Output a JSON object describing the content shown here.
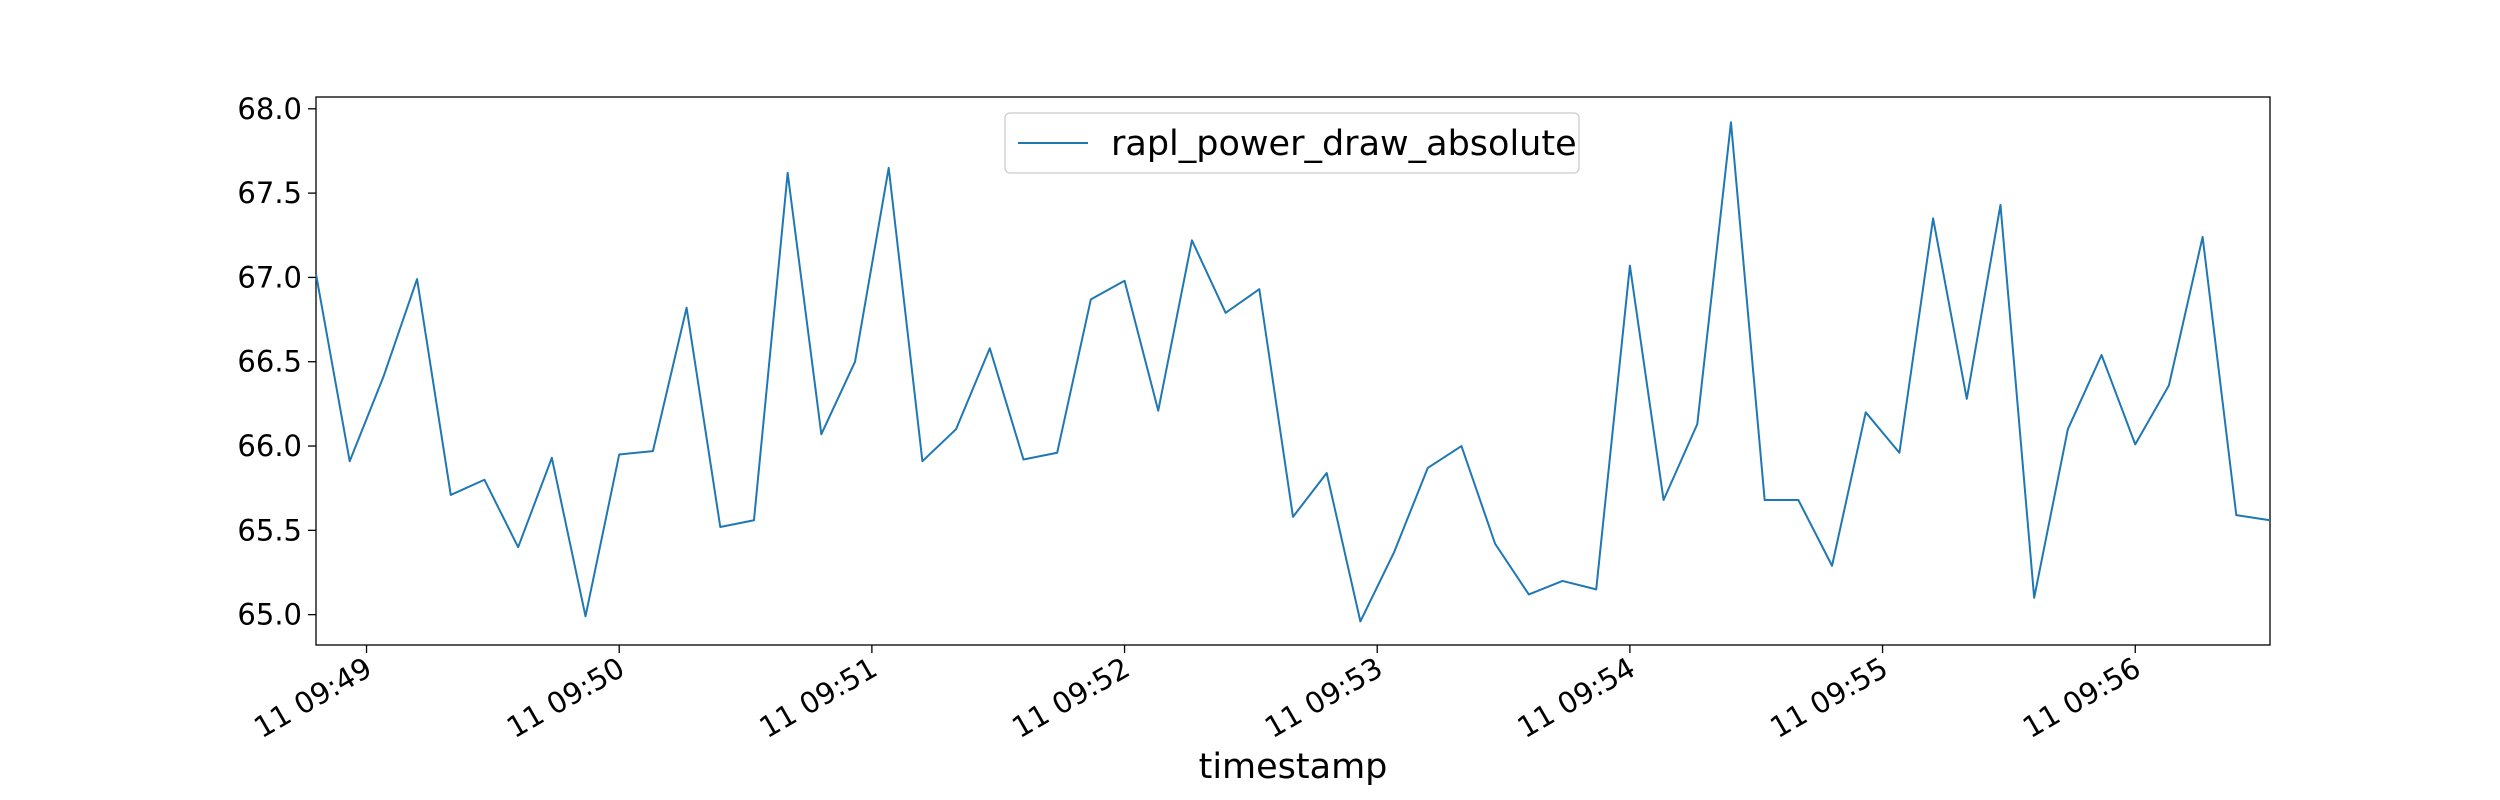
{
  "chart_data": {
    "type": "line",
    "title": "",
    "xlabel": "timestamp",
    "ylabel": "",
    "x_tick_labels": [
      "11 09:49",
      "11 09:50",
      "11 09:51",
      "11 09:52",
      "11 09:53",
      "11 09:54",
      "11 09:55",
      "11 09:56"
    ],
    "y_tick_labels": [
      "65.0",
      "65.5",
      "66.0",
      "66.5",
      "67.0",
      "67.5",
      "68.0"
    ],
    "ylim": [
      64.82,
      68.07
    ],
    "grid": false,
    "legend": {
      "position": "top-center"
    },
    "series": [
      {
        "name": "rapl_power_draw_absolute",
        "color": "#1f77b4",
        "x": [
          "09:48:48",
          "09:48:56",
          "09:49:04",
          "09:49:12",
          "09:49:20",
          "09:49:28",
          "09:49:36",
          "09:49:44",
          "09:49:52",
          "09:50:00",
          "09:50:08",
          "09:50:16",
          "09:50:24",
          "09:50:32",
          "09:50:40",
          "09:50:48",
          "09:50:56",
          "09:51:04",
          "09:51:12",
          "09:51:20",
          "09:51:28",
          "09:51:36",
          "09:51:44",
          "09:51:52",
          "09:52:00",
          "09:52:08",
          "09:52:16",
          "09:52:24",
          "09:52:32",
          "09:52:40",
          "09:52:48",
          "09:52:56",
          "09:53:04",
          "09:53:12",
          "09:53:20",
          "09:53:28",
          "09:53:36",
          "09:53:44",
          "09:53:52",
          "09:54:00",
          "09:54:08",
          "09:54:16",
          "09:54:24",
          "09:54:32",
          "09:54:40",
          "09:54:48",
          "09:54:56",
          "09:55:04",
          "09:55:12",
          "09:55:20",
          "09:55:28",
          "09:55:36",
          "09:55:44",
          "09:55:52",
          "09:56:00",
          "09:56:08",
          "09:56:16",
          "09:56:24",
          "09:56:32"
        ],
        "values": [
          67.02,
          65.91,
          66.41,
          66.99,
          65.71,
          65.8,
          65.4,
          65.93,
          64.99,
          65.95,
          65.97,
          66.82,
          65.52,
          65.56,
          67.62,
          66.07,
          66.5,
          67.65,
          65.91,
          66.1,
          66.58,
          65.92,
          65.96,
          66.87,
          66.98,
          66.21,
          67.22,
          66.79,
          66.93,
          65.58,
          65.84,
          64.96,
          65.37,
          65.87,
          66.0,
          65.42,
          65.12,
          65.2,
          65.15,
          67.07,
          65.68,
          66.13,
          67.92,
          65.68,
          65.68,
          65.29,
          66.2,
          65.96,
          67.35,
          66.28,
          67.43,
          65.1,
          66.1,
          66.54,
          66.01,
          66.36,
          67.24,
          65.59,
          65.56
        ]
      }
    ]
  }
}
